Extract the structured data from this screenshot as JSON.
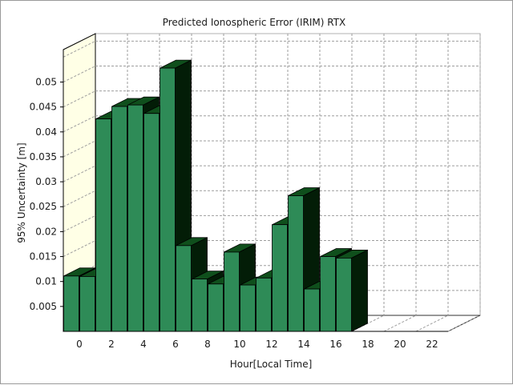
{
  "chart_data": {
    "type": "bar",
    "title": "Predicted Ionospheric Error (IRIM) RTX",
    "xlabel": "Hour[Local Time]",
    "ylabel": "95% Uncertainty [m]",
    "x_tick_labels": [
      "0",
      "2",
      "4",
      "6",
      "8",
      "10",
      "12",
      "14",
      "16",
      "18",
      "20",
      "22"
    ],
    "y_tick_labels": [
      "0.005",
      "0.01",
      "0.015",
      "0.02",
      "0.025",
      "0.03",
      "0.035",
      "0.04",
      "0.045",
      "0.05"
    ],
    "ylim": [
      0,
      0.0565
    ],
    "xlim": [
      0,
      24
    ],
    "hours": [
      0,
      1,
      2,
      3,
      4,
      5,
      6,
      7,
      8,
      9,
      10,
      11,
      12,
      13,
      14,
      15,
      16,
      17
    ],
    "values": [
      0.0111,
      0.011,
      0.0426,
      0.0451,
      0.0454,
      0.0437,
      0.0528,
      0.0172,
      0.0105,
      0.0095,
      0.0159,
      0.0093,
      0.0107,
      0.0214,
      0.0272,
      0.0085,
      0.015,
      0.0147
    ],
    "grid": true,
    "colors": {
      "bar_front": "#2e8b57",
      "bar_top": "#0f4f1c",
      "bar_side": "#031d07",
      "back_wall": "#ffffff",
      "left_wall": "#ffffe6",
      "grid": "#9e9e9e",
      "title_text": "#1c1c6e",
      "axis": "#000000"
    }
  }
}
